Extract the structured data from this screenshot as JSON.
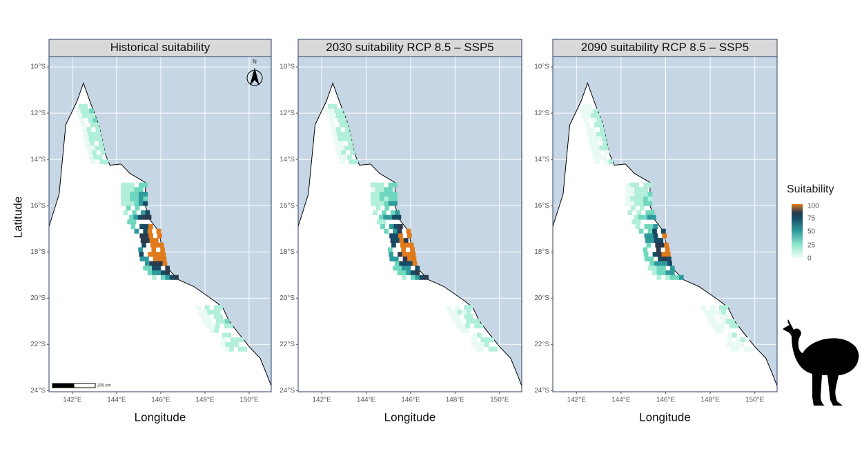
{
  "panels": [
    {
      "title": "Historical suitability",
      "north_label": "N",
      "scale_label": "200 km"
    },
    {
      "title": "2030 suitability RCP 8.5 – SSP5"
    },
    {
      "title": "2090 suitability RCP 8.5 – SSP5"
    }
  ],
  "y_axis_label": "Latitude",
  "x_axis_label": "Longitude",
  "yticks": [
    "10°S",
    "12°S",
    "14°S",
    "16°S",
    "18°S",
    "20°S",
    "22°S",
    "24°S"
  ],
  "xticks": [
    "142°E",
    "144°E",
    "146°E",
    "148°E",
    "150°E"
  ],
  "legend": {
    "title": "Suitability",
    "ticks": [
      "100",
      "75",
      "50",
      "25",
      "0"
    ]
  }
}
